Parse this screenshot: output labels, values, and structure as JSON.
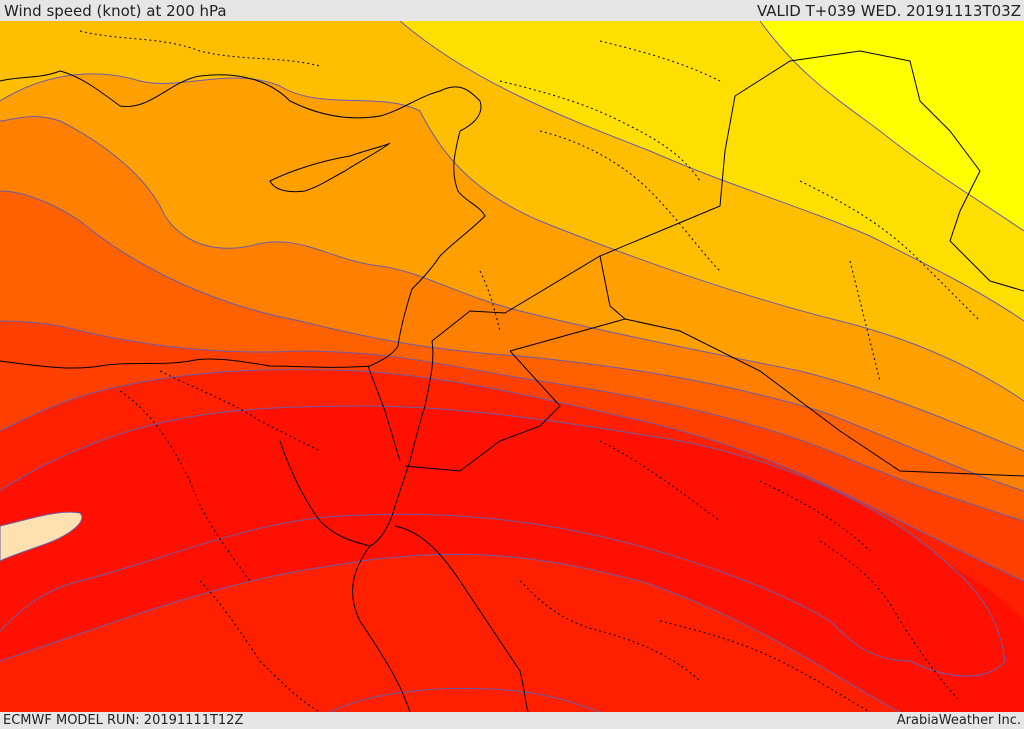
{
  "header": {
    "title": "Wind speed (knot) at 200 hPa",
    "valid_time": "VALID T+039 WED. 20191113T03Z"
  },
  "footer": {
    "model_run": "ECMWF MODEL RUN: 20191111T12Z",
    "credit": "ArabiaWeather Inc."
  },
  "map": {
    "variable": "wind speed",
    "level": "200 hPa",
    "colors": {
      "yellow": "#ffff00",
      "gold": "#ffdf00",
      "amber": "#ffbf00",
      "orange_light": "#ffa000",
      "orange": "#ff8000",
      "orange_dark": "#ff6000",
      "red_orange": "#ff4000",
      "red_light": "#ff2000",
      "red": "#ff1000",
      "jet_core": "#ffe0b0",
      "contour": "#6f5aa8",
      "border": "#000000"
    }
  }
}
